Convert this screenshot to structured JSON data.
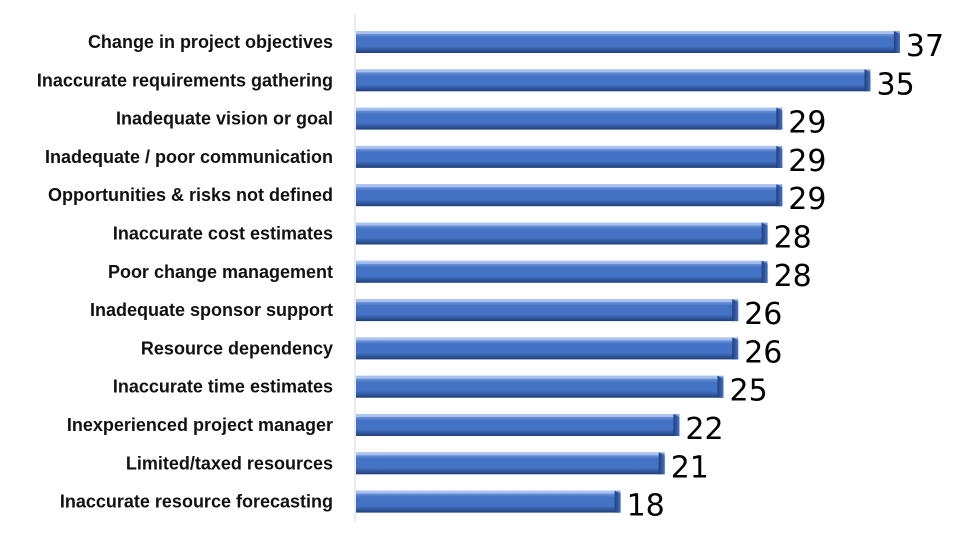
{
  "chart_data": {
    "type": "bar",
    "orientation": "horizontal",
    "categories": [
      "Change in project objectives",
      "Inaccurate requirements gathering",
      "Inadequate vision or goal",
      "Inadequate / poor communication",
      "Opportunities & risks not defined",
      "Inaccurate cost estimates",
      "Poor change management",
      "Inadequate sponsor support",
      "Resource dependency",
      "Inaccurate time estimates",
      "Inexperienced project manager",
      "Limited/taxed resources",
      "Inaccurate resource forecasting"
    ],
    "values": [
      37,
      35,
      29,
      29,
      29,
      28,
      28,
      26,
      26,
      25,
      22,
      21,
      18
    ],
    "data_labels": [
      "37",
      "35",
      "29",
      "29",
      "29",
      "28",
      "28",
      "26",
      "26",
      "25",
      "22",
      "21",
      "18"
    ],
    "xlim": [
      0,
      40
    ],
    "grid": false,
    "legend": "none",
    "bar_color": "#4472C4",
    "bar_color_light": "#8FB0EC",
    "bar_color_dark": "#1F3F7A",
    "axis_color": "#D9D9D9",
    "title": "",
    "xlabel": "",
    "ylabel": ""
  }
}
